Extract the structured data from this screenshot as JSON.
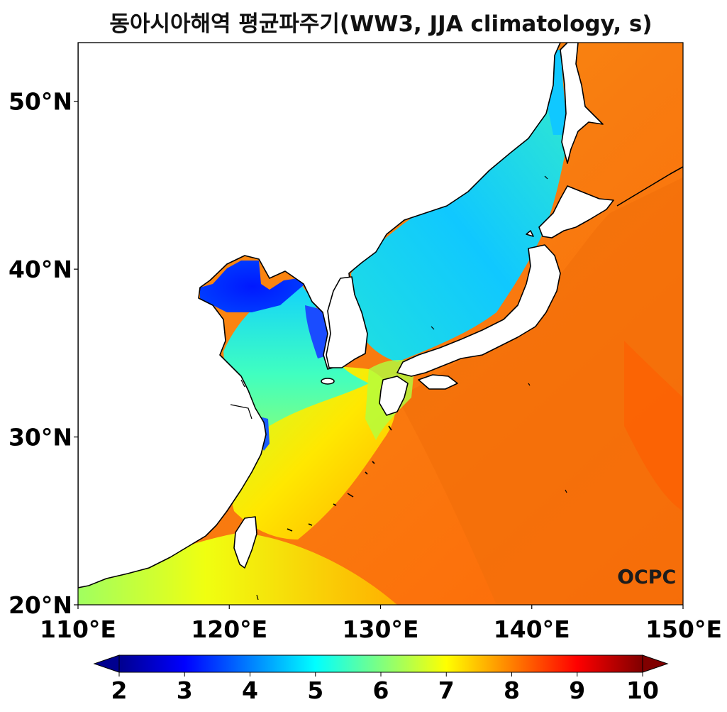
{
  "title": "동아시아해역 평균파주기(WW3, JJA climatology, s)",
  "map": {
    "lon_range": [
      110,
      150
    ],
    "lat_range": [
      20,
      53.5
    ],
    "lon_ticks": [
      {
        "value": 110,
        "label": "110°E"
      },
      {
        "value": 120,
        "label": "120°E"
      },
      {
        "value": 130,
        "label": "130°E"
      },
      {
        "value": 140,
        "label": "140°E"
      },
      {
        "value": 150,
        "label": "150°E"
      }
    ],
    "lat_ticks": [
      {
        "value": 20,
        "label": "20°N"
      },
      {
        "value": 30,
        "label": "30°N"
      },
      {
        "value": 40,
        "label": "40°N"
      },
      {
        "value": 50,
        "label": "50°N"
      }
    ],
    "land_color": "#ffffff",
    "coastline_color": "#000000",
    "open_ocean_color": "#f07a10"
  },
  "colorbar": {
    "colormap": "jet",
    "min": 2,
    "max": 10,
    "extend": "both",
    "ticks": [
      {
        "value": 2,
        "label": "2"
      },
      {
        "value": 3,
        "label": "3"
      },
      {
        "value": 4,
        "label": "4"
      },
      {
        "value": 5,
        "label": "5"
      },
      {
        "value": 6,
        "label": "6"
      },
      {
        "value": 7,
        "label": "7"
      },
      {
        "value": 8,
        "label": "8"
      },
      {
        "value": 9,
        "label": "9"
      },
      {
        "value": 10,
        "label": "10"
      }
    ]
  },
  "logo": {
    "text": "OCPC"
  }
}
